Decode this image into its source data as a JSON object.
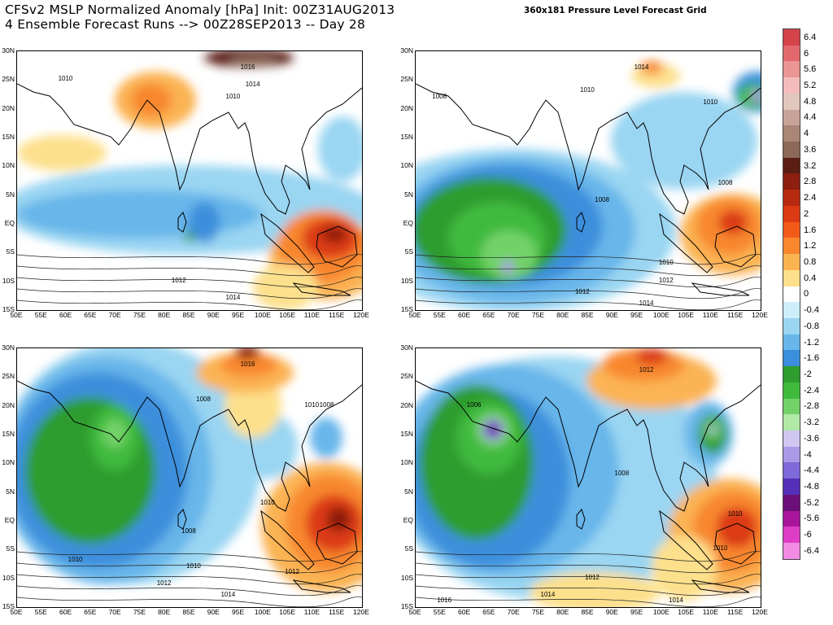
{
  "header": {
    "title_line1": "CFSv2 MSLP Normalized Anomaly [hPa] Init: 00Z31AUG2013",
    "title_line2": "4 Ensemble Forecast Runs --> 00Z28SEP2013 -- Day 28",
    "grid_label": "360x181 Pressure Level Forecast Grid"
  },
  "axes": {
    "lat_labels": [
      "30N",
      "25N",
      "20N",
      "15N",
      "10N",
      "5N",
      "EQ",
      "5S",
      "10S",
      "15S"
    ],
    "lon_labels": [
      "50E",
      "55E",
      "60E",
      "65E",
      "70E",
      "75E",
      "80E",
      "85E",
      "90E",
      "95E",
      "100E",
      "105E",
      "110E",
      "115E",
      "120E"
    ]
  },
  "panels": [
    {
      "name": "run-1",
      "isobars": [
        {
          "text": "1010",
          "lon": 60,
          "lat": 25
        },
        {
          "text": "1016",
          "lon": 97,
          "lat": 27
        },
        {
          "text": "1010",
          "lon": 94,
          "lat": 22
        },
        {
          "text": "1014",
          "lon": 98,
          "lat": 24
        },
        {
          "text": "1012",
          "lon": 83,
          "lat": -10
        },
        {
          "text": "1014",
          "lon": 94,
          "lat": -13
        }
      ]
    },
    {
      "name": "run-2",
      "isobars": [
        {
          "text": "1014",
          "lon": 96,
          "lat": 27
        },
        {
          "text": "1008",
          "lon": 55,
          "lat": 22
        },
        {
          "text": "1010",
          "lon": 85,
          "lat": 23
        },
        {
          "text": "1010",
          "lon": 110,
          "lat": 21
        },
        {
          "text": "1008",
          "lon": 88,
          "lat": 4
        },
        {
          "text": "1008",
          "lon": 113,
          "lat": 7
        },
        {
          "text": "1010",
          "lon": 101,
          "lat": -7
        },
        {
          "text": "1012",
          "lon": 101,
          "lat": -10
        },
        {
          "text": "1012",
          "lon": 84,
          "lat": -12
        },
        {
          "text": "1014",
          "lon": 97,
          "lat": -14
        }
      ]
    },
    {
      "name": "run-3",
      "isobars": [
        {
          "text": "1016",
          "lon": 97,
          "lat": 27
        },
        {
          "text": "1008",
          "lon": 88,
          "lat": 21
        },
        {
          "text": "1010",
          "lon": 110,
          "lat": 20
        },
        {
          "text": "1008",
          "lon": 113,
          "lat": 20
        },
        {
          "text": "1010",
          "lon": 101,
          "lat": 3
        },
        {
          "text": "1008",
          "lon": 85,
          "lat": -2
        },
        {
          "text": "1010",
          "lon": 62,
          "lat": -7
        },
        {
          "text": "1010",
          "lon": 86,
          "lat": -8
        },
        {
          "text": "1012",
          "lon": 106,
          "lat": -9
        },
        {
          "text": "1012",
          "lon": 80,
          "lat": -11
        },
        {
          "text": "1014",
          "lon": 93,
          "lat": -13
        }
      ]
    },
    {
      "name": "run-4",
      "isobars": [
        {
          "text": "1012",
          "lon": 97,
          "lat": 26
        },
        {
          "text": "1006",
          "lon": 62,
          "lat": 20
        },
        {
          "text": "1008",
          "lon": 92,
          "lat": 8
        },
        {
          "text": "1010",
          "lon": 115,
          "lat": 1
        },
        {
          "text": "1010",
          "lon": 112,
          "lat": -5
        },
        {
          "text": "1012",
          "lon": 86,
          "lat": -10
        },
        {
          "text": "1014",
          "lon": 77,
          "lat": -13
        },
        {
          "text": "1016",
          "lon": 56,
          "lat": -14
        },
        {
          "text": "1014",
          "lon": 103,
          "lat": -14
        }
      ]
    }
  ],
  "colorbar": {
    "labels": [
      "6.4",
      "6",
      "5.6",
      "5.2",
      "4.8",
      "4.4",
      "4",
      "3.6",
      "3.2",
      "2.8",
      "2.4",
      "2",
      "1.6",
      "1.2",
      "0.8",
      "0.4",
      "0",
      "-0.4",
      "-0.8",
      "-1.2",
      "-1.6",
      "-2",
      "-2.4",
      "-2.8",
      "-3.2",
      "-3.6",
      "-4",
      "-4.4",
      "-4.8",
      "-5.2",
      "-5.6",
      "-6",
      "-6.4"
    ],
    "colors": [
      "#d4434a",
      "#e1696d",
      "#eb9595",
      "#f4bcbc",
      "#e2c7bd",
      "#c8a498",
      "#a98676",
      "#8b6858",
      "#5b1e14",
      "#8c1f10",
      "#b82a10",
      "#dc3a12",
      "#f25a1a",
      "#f8872e",
      "#fbb352",
      "#fde08c",
      "#ffffff",
      "#cdeefa",
      "#9ad5f2",
      "#68b6ea",
      "#3c8fdc",
      "#2f9c2e",
      "#3fba3c",
      "#72d269",
      "#b1e9a6",
      "#cfc7f0",
      "#aa99e6",
      "#7d69d7",
      "#5430b8",
      "#6b1079",
      "#a8159b",
      "#de3ec6",
      "#f18be3"
    ]
  }
}
